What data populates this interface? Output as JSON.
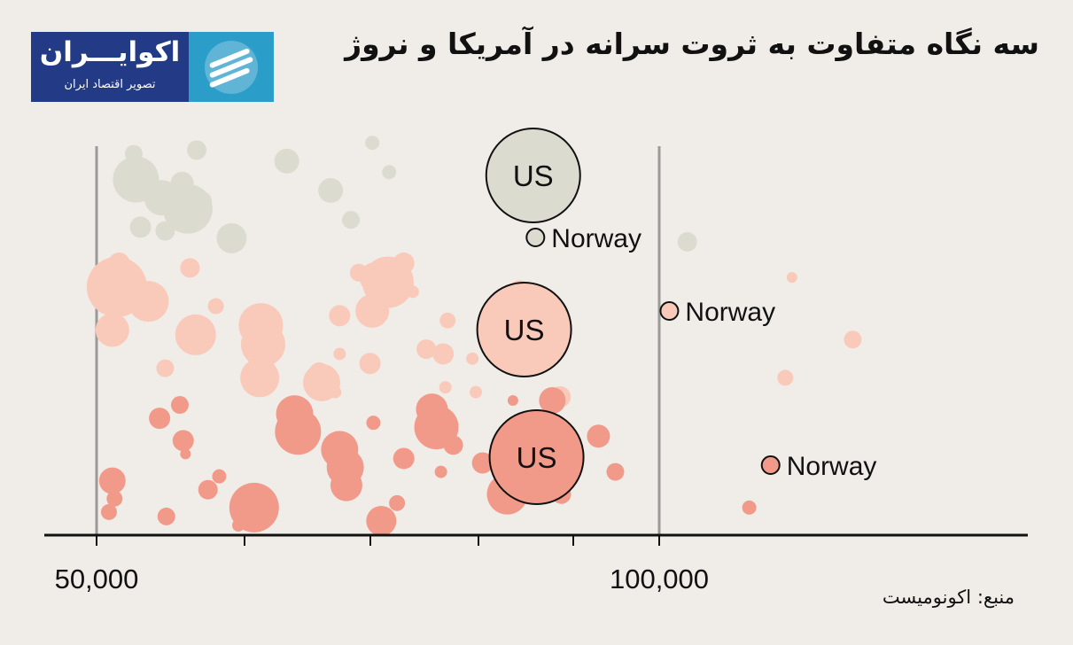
{
  "title": "سه نگاه متفاوت به ثروت سرانه در آمریکا و نروژ",
  "logo": {
    "name": "اکوایـــران",
    "tagline": "تصویر اقتصاد ایران"
  },
  "source": "منبع: اکونومیست",
  "colors": {
    "background": "#f0ede8",
    "gray_row": "#dcdbd0",
    "light_row": "#f9c9ba",
    "dark_row": "#f29a8a",
    "axis": "#111111",
    "logo_blue": "#233a86",
    "logo_cyan": "#2b9dc9"
  },
  "chart_data": {
    "type": "scatter",
    "xlim": [
      40000,
      120000
    ],
    "x_tick_labels": [
      {
        "value": 50000,
        "label": "50,000"
      },
      {
        "value": 100000,
        "label": "100,000"
      }
    ],
    "rows": [
      {
        "color": "#dcdbd0",
        "labels": [
          {
            "text": "US",
            "x": 88800,
            "big": true
          },
          {
            "text": "Norway",
            "x": 89000
          }
        ],
        "points": [
          {
            "x": 88800,
            "size": 53
          },
          {
            "x": 89000,
            "size": 10
          },
          {
            "x": 55800,
            "size": 20
          },
          {
            "x": 53900,
            "size": 12
          },
          {
            "x": 58900,
            "size": 11
          },
          {
            "x": 53500,
            "size": 26
          },
          {
            "x": 58100,
            "size": 28
          },
          {
            "x": 62000,
            "size": 17
          },
          {
            "x": 66900,
            "size": 14
          },
          {
            "x": 70800,
            "size": 14
          },
          {
            "x": 72600,
            "size": 10
          },
          {
            "x": 74500,
            "size": 8
          },
          {
            "x": 76000,
            "size": 8
          },
          {
            "x": 59300,
            "size": 12
          },
          {
            "x": 56100,
            "size": 11
          },
          {
            "x": 53300,
            "size": 10
          },
          {
            "x": 57600,
            "size": 13
          },
          {
            "x": 89700,
            "size": 10
          },
          {
            "x": 102500,
            "size": 11
          },
          {
            "x": 87300,
            "size": 8
          }
        ]
      },
      {
        "color": "#f9c9ba",
        "labels": [
          {
            "text": "US",
            "x": 88000,
            "big": true
          },
          {
            "text": "Norway",
            "x": 100900
          }
        ],
        "points": [
          {
            "x": 88000,
            "size": 53
          },
          {
            "x": 100900,
            "size": 10
          },
          {
            "x": 52000,
            "size": 12
          },
          {
            "x": 54600,
            "size": 23
          },
          {
            "x": 58700,
            "size": 11
          },
          {
            "x": 64500,
            "size": 22
          },
          {
            "x": 74700,
            "size": 17
          },
          {
            "x": 71600,
            "size": 12
          },
          {
            "x": 80800,
            "size": 12
          },
          {
            "x": 83700,
            "size": 7
          },
          {
            "x": 87600,
            "size": 13
          },
          {
            "x": 51400,
            "size": 19
          },
          {
            "x": 56100,
            "size": 10
          },
          {
            "x": 58300,
            "size": 11
          },
          {
            "x": 60600,
            "size": 9
          },
          {
            "x": 64800,
            "size": 25
          },
          {
            "x": 70000,
            "size": 21
          },
          {
            "x": 75900,
            "size": 29
          },
          {
            "x": 81200,
            "size": 9
          },
          {
            "x": 83400,
            "size": 7
          },
          {
            "x": 91200,
            "size": 12
          },
          {
            "x": 55200,
            "size": 8
          },
          {
            "x": 58800,
            "size": 23
          },
          {
            "x": 69800,
            "size": 12
          },
          {
            "x": 73300,
            "size": 10
          },
          {
            "x": 74500,
            "size": 19
          },
          {
            "x": 79300,
            "size": 11
          },
          {
            "x": 81000,
            "size": 7
          },
          {
            "x": 51800,
            "size": 34
          },
          {
            "x": 64600,
            "size": 25
          },
          {
            "x": 74300,
            "size": 12
          },
          {
            "x": 77300,
            "size": 12
          },
          {
            "x": 52600,
            "size": 10
          },
          {
            "x": 117200,
            "size": 10
          },
          {
            "x": 111200,
            "size": 9
          },
          {
            "x": 111800,
            "size": 6
          },
          {
            "x": 89000,
            "size": 6
          },
          {
            "x": 71600,
            "size": 7
          },
          {
            "x": 71200,
            "size": 7
          },
          {
            "x": 78100,
            "size": 7
          }
        ]
      },
      {
        "color": "#f29a8a",
        "labels": [
          {
            "text": "US",
            "x": 89100,
            "big": true
          },
          {
            "text": "Norway",
            "x": 109900
          }
        ],
        "points": [
          {
            "x": 89100,
            "size": 53
          },
          {
            "x": 109900,
            "size": 10
          },
          {
            "x": 88000,
            "size": 10
          },
          {
            "x": 91300,
            "size": 11
          },
          {
            "x": 87000,
            "size": 6
          },
          {
            "x": 79000,
            "size": 6
          },
          {
            "x": 80600,
            "size": 7
          },
          {
            "x": 64000,
            "size": 28
          },
          {
            "x": 67600,
            "size": 21
          },
          {
            "x": 71600,
            "size": 21
          },
          {
            "x": 72200,
            "size": 18
          },
          {
            "x": 75300,
            "size": 17
          },
          {
            "x": 80200,
            "size": 25
          },
          {
            "x": 84300,
            "size": 12
          },
          {
            "x": 51600,
            "size": 9
          },
          {
            "x": 57400,
            "size": 10
          },
          {
            "x": 57700,
            "size": 12
          },
          {
            "x": 60900,
            "size": 8
          },
          {
            "x": 51100,
            "size": 9
          },
          {
            "x": 55600,
            "size": 12
          },
          {
            "x": 57900,
            "size": 6
          },
          {
            "x": 59900,
            "size": 11
          },
          {
            "x": 62600,
            "size": 7
          },
          {
            "x": 67900,
            "size": 26
          },
          {
            "x": 72100,
            "size": 21
          },
          {
            "x": 76700,
            "size": 9
          },
          {
            "x": 79800,
            "size": 18
          },
          {
            "x": 81700,
            "size": 11
          },
          {
            "x": 51400,
            "size": 15
          },
          {
            "x": 56200,
            "size": 10
          },
          {
            "x": 74600,
            "size": 8
          },
          {
            "x": 77300,
            "size": 12
          },
          {
            "x": 86500,
            "size": 23
          },
          {
            "x": 90500,
            "size": 15
          },
          {
            "x": 94600,
            "size": 13
          },
          {
            "x": 96100,
            "size": 10
          },
          {
            "x": 108000,
            "size": 8
          }
        ]
      }
    ]
  }
}
